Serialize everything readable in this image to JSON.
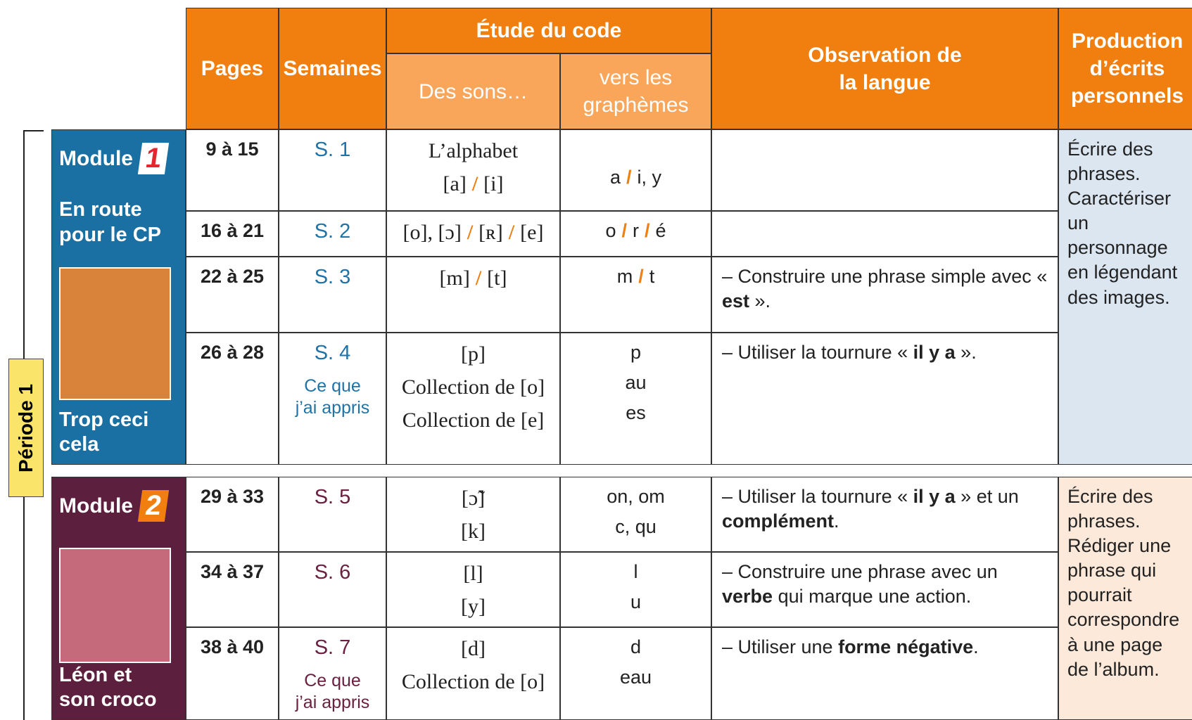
{
  "header": {
    "pages": "Pages",
    "semaines": "Semaines",
    "etude": "Étude du code",
    "sons": "Des sons…",
    "graphemes": "vers les graphèmes",
    "observation": "Observation de la langue",
    "production": "Production d’écrits personnels"
  },
  "periode": "Période 1",
  "separator": "/",
  "modules": [
    {
      "label": "Module",
      "number": "1",
      "title": "En route pour le CP",
      "album": "Trop ceci cela",
      "production": "Écrire des phrases. Caractériser un personnage en légendant des images.",
      "rows": [
        {
          "pages": "9 à 15",
          "semaine": "S. 1",
          "sons": [
            [
              "L’alphabet"
            ],
            [
              "[a]",
              "[i]"
            ]
          ],
          "graphemes": [
            [
              "a",
              "i, y"
            ]
          ]
        },
        {
          "pages": "16 à 21",
          "semaine": "S. 2",
          "sons": [
            [
              "[o], [ɔ]",
              "[ʀ]",
              "[e]"
            ]
          ],
          "graphemes": [
            [
              "o",
              "r",
              "é"
            ]
          ]
        },
        {
          "pages": "22 à 25",
          "semaine": "S. 3",
          "sons": [
            [
              "[m]",
              "[t]"
            ]
          ],
          "graphemes": [
            [
              "m",
              "t"
            ]
          ],
          "observation": [
            {
              "text": "– Construire une phrase simple avec « "
            },
            {
              "text": "est",
              "bold": true
            },
            {
              "text": " »."
            }
          ]
        },
        {
          "pages": "26 à 28",
          "semaine": "S. 4",
          "extra": "Ce que j’ai appris",
          "sons": [
            [
              "[p]"
            ],
            [
              "Collection de [o]"
            ],
            [
              "Collection de [e]"
            ]
          ],
          "graphemes": [
            [
              "p"
            ],
            [
              "au"
            ],
            [
              "es"
            ]
          ],
          "observation": [
            {
              "text": "– Utiliser la tournure « "
            },
            {
              "text": "il y a",
              "bold": true
            },
            {
              "text": " »."
            }
          ]
        }
      ]
    },
    {
      "label": "Module",
      "number": "2",
      "album": "Léon et son croco",
      "production": "Écrire des phrases. Rédiger une phrase qui pourrait correspondre à une page de l’album.",
      "rows": [
        {
          "pages": "29 à 33",
          "semaine": "S. 5",
          "sons": [
            [
              "[ɔ̃]"
            ],
            [
              "[k]"
            ]
          ],
          "graphemes": [
            [
              "on, om"
            ],
            [
              "c, qu"
            ]
          ],
          "observation": [
            {
              "text": "– Utiliser la tournure « "
            },
            {
              "text": "il y a",
              "bold": true
            },
            {
              "text": " » et un "
            },
            {
              "text": "complément",
              "bold": true
            },
            {
              "text": "."
            }
          ]
        },
        {
          "pages": "34 à 37",
          "semaine": "S. 6",
          "sons": [
            [
              "[l]"
            ],
            [
              "[y]"
            ]
          ],
          "graphemes": [
            [
              "l"
            ],
            [
              "u"
            ]
          ],
          "observation": [
            {
              "text": "– Construire une phrase avec un "
            },
            {
              "text": "verbe",
              "bold": true
            },
            {
              "text": " qui marque une action."
            }
          ]
        },
        {
          "pages": "38 à 40",
          "semaine": "S. 7",
          "extra": "Ce que j’ai appris",
          "sons": [
            [
              "[d]"
            ],
            [
              "Collection de [o]"
            ]
          ],
          "graphemes": [
            [
              "d"
            ],
            [
              "eau"
            ]
          ],
          "observation": [
            {
              "text": "– Utiliser une "
            },
            {
              "text": "forme négative",
              "bold": true
            },
            {
              "text": "."
            }
          ]
        }
      ]
    }
  ]
}
